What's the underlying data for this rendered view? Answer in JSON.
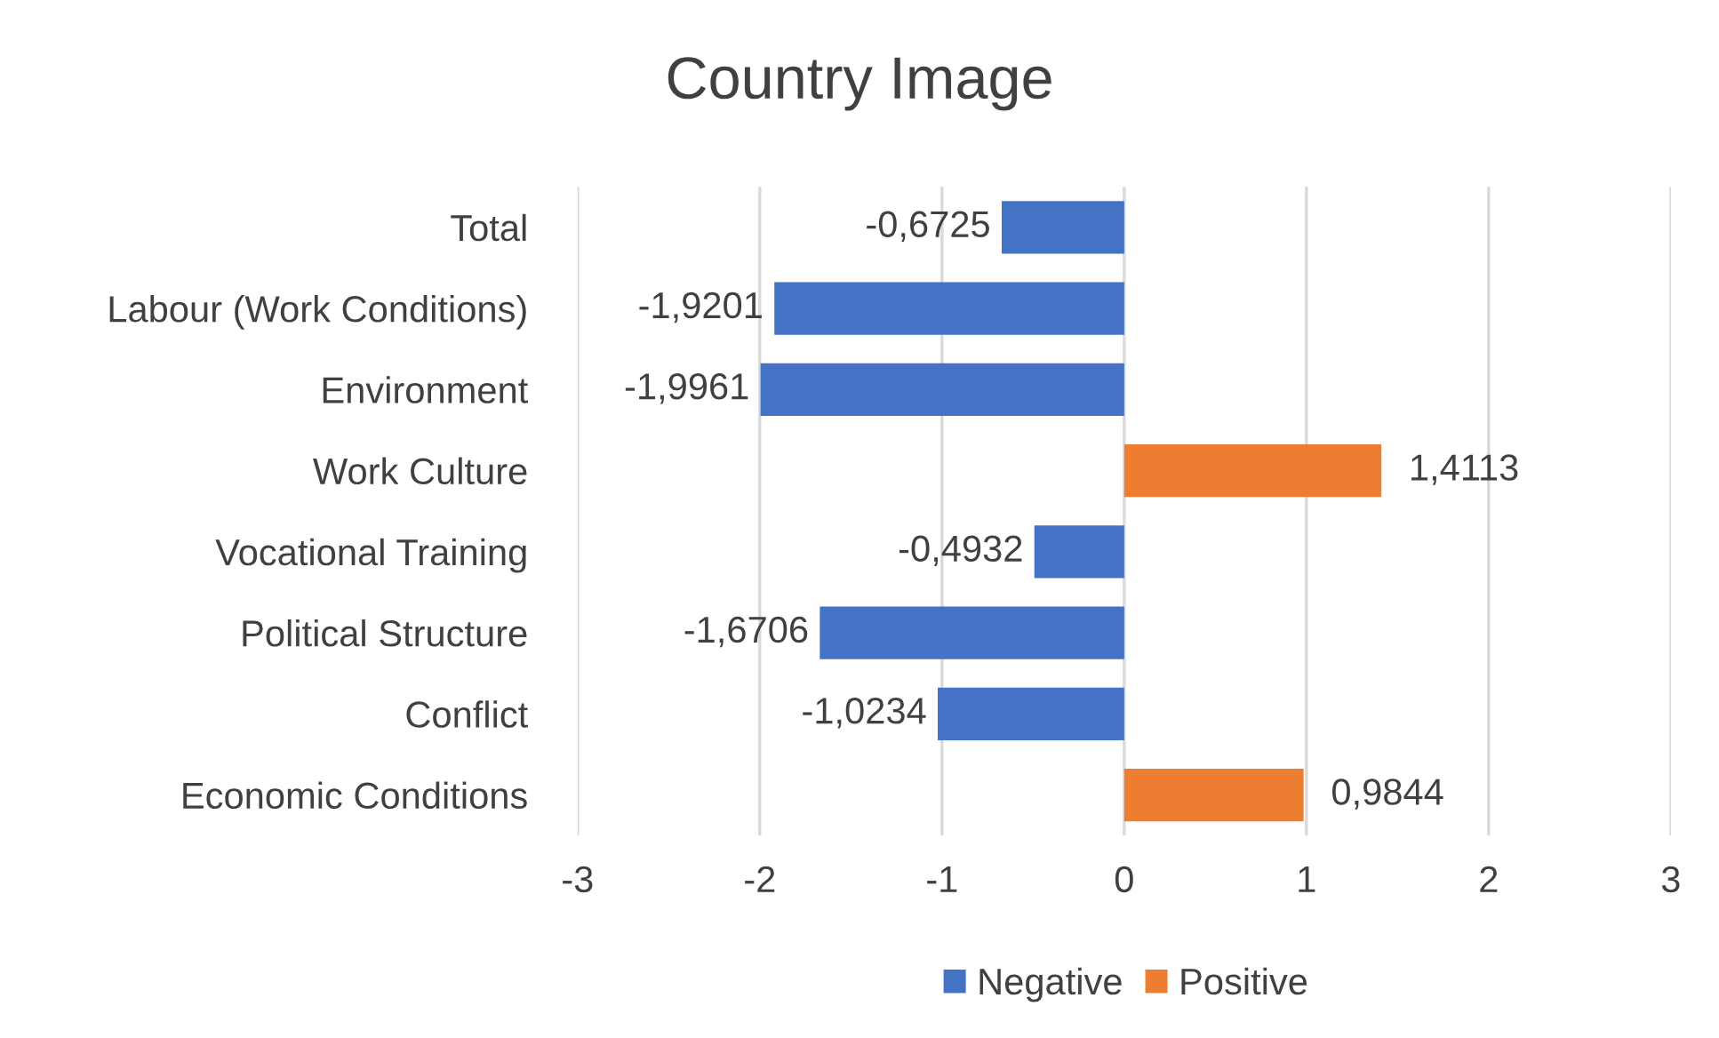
{
  "chart_data": {
    "type": "bar",
    "orientation": "horizontal",
    "stacked": true,
    "title": "Country Image",
    "categories": [
      "Total",
      "Labour (Work Conditions)",
      "Environment",
      "Work Culture",
      "Vocational Training",
      "Political Structure",
      "Conflict",
      "Economic Conditions"
    ],
    "series": [
      {
        "name": "Negative",
        "color": "#4472c4",
        "values": [
          -0.6725,
          -1.9201,
          -1.9961,
          null,
          -0.4932,
          -1.6706,
          -1.0234,
          null
        ],
        "value_labels": [
          "-0,6725",
          "-1,9201",
          "-1,9961",
          null,
          "-0,4932",
          "-1,6706",
          "-1,0234",
          null
        ]
      },
      {
        "name": "Positive",
        "color": "#ed7d31",
        "values": [
          null,
          null,
          null,
          1.4113,
          null,
          null,
          null,
          0.9844
        ],
        "value_labels": [
          null,
          null,
          null,
          "1,4113",
          null,
          null,
          null,
          "0,9844"
        ]
      }
    ],
    "xlim": [
      -3,
      3
    ],
    "xticks": [
      -3,
      -2,
      -1,
      0,
      1,
      2,
      3
    ],
    "grid": "x",
    "legend": "bottom"
  }
}
